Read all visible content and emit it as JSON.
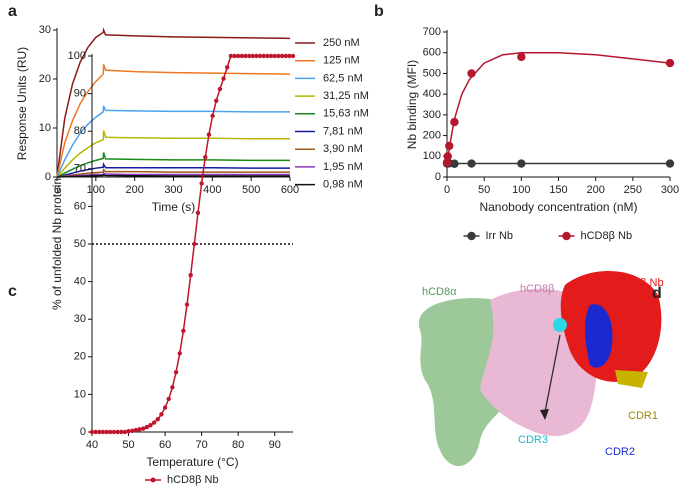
{
  "chart_data": [
    {
      "type": "line",
      "panel": "a",
      "xlabel": "Time (s)",
      "ylabel": "Response Units (RU)",
      "x": [
        0,
        20,
        40,
        60,
        80,
        100,
        119,
        120,
        125,
        200,
        300,
        400,
        500,
        600
      ],
      "xlim": [
        0,
        600
      ],
      "xticks": [
        0,
        100,
        200,
        300,
        400,
        500,
        600
      ],
      "ylim": [
        0,
        30
      ],
      "yticks": [
        0,
        10,
        20,
        30
      ],
      "legend": "right",
      "series": [
        {
          "name": "250 nM",
          "color": "#8b1a1a",
          "values": [
            0,
            12,
            19,
            23.5,
            26.5,
            28.5,
            29.5,
            30,
            29,
            28.8,
            28.6,
            28.5,
            28.4,
            28.3
          ]
        },
        {
          "name": "125 nM",
          "color": "#f07820",
          "values": [
            0,
            7,
            11.5,
            15,
            17.5,
            19.5,
            21,
            23,
            21.8,
            21.5,
            21.3,
            21.2,
            21.1,
            21
          ]
        },
        {
          "name": "62,5 nM",
          "color": "#4aa3f0",
          "values": [
            0,
            3.5,
            6.5,
            9,
            10.8,
            12.2,
            13.3,
            14.5,
            13.6,
            13.5,
            13.4,
            13.4,
            13.3,
            13.3
          ]
        },
        {
          "name": "31,25 nM",
          "color": "#b8b800",
          "values": [
            0,
            1.8,
            3.5,
            4.9,
            6,
            7,
            7.6,
            9.5,
            8.1,
            8,
            7.9,
            7.9,
            7.8,
            7.8
          ]
        },
        {
          "name": "15,63 nM",
          "color": "#1a8a1a",
          "values": [
            0,
            0.8,
            1.6,
            2.3,
            2.9,
            3.4,
            3.8,
            5,
            3.7,
            3.6,
            3.5,
            3.5,
            3.4,
            3.4
          ]
        },
        {
          "name": "7,81 nM",
          "color": "#1a1aa0",
          "values": [
            0,
            0.4,
            0.8,
            1.2,
            1.5,
            1.8,
            2,
            2.6,
            1.9,
            1.9,
            1.9,
            1.9,
            1.8,
            1.8
          ]
        },
        {
          "name": "3,90 nM",
          "color": "#a05a1a",
          "values": [
            0,
            0.2,
            0.4,
            0.6,
            0.8,
            0.9,
            1,
            1.5,
            1.1,
            1.1,
            1,
            1,
            1,
            1
          ]
        },
        {
          "name": "1,95 nM",
          "color": "#8a3ac0",
          "values": [
            0,
            0.1,
            0.2,
            0.3,
            0.4,
            0.5,
            0.5,
            0.8,
            0.6,
            0.5,
            0.5,
            0.5,
            0.5,
            0.5
          ]
        },
        {
          "name": "0,98 nM",
          "color": "#111111",
          "values": [
            0,
            0.05,
            0.1,
            0.15,
            0.2,
            0.25,
            0.3,
            0.4,
            0.3,
            0.25,
            0.2,
            0.2,
            0.2,
            0.2
          ]
        }
      ]
    },
    {
      "type": "scatter",
      "panel": "b",
      "xlabel": "Nanobody concentration (nM)",
      "ylabel": "Nb binding (MFI)",
      "xlim": [
        0,
        300
      ],
      "xticks": [
        0,
        50,
        100,
        150,
        200,
        250,
        300
      ],
      "ylim": [
        0,
        700
      ],
      "yticks": [
        0,
        100,
        200,
        300,
        400,
        500,
        600,
        700
      ],
      "legend": "bottom",
      "series": [
        {
          "name": "Irr Nb",
          "color": "#3a3a3a",
          "x": [
            0,
            1,
            3,
            10,
            33,
            100,
            300
          ],
          "values": [
            65,
            65,
            66,
            64,
            65,
            65,
            65
          ],
          "fit": {
            "x": [
              0,
              300
            ],
            "values": [
              65,
              65
            ]
          }
        },
        {
          "name": "hCD8β Nb",
          "color": "#b5172c",
          "x": [
            0,
            1,
            3,
            10,
            33,
            100,
            300
          ],
          "values": [
            70,
            100,
            150,
            265,
            500,
            580,
            550
          ],
          "fit": {
            "x": [
              0,
              5,
              10,
              20,
              30,
              50,
              75,
              100,
              150,
              200,
              250,
              300
            ],
            "values": [
              65,
              180,
              280,
              400,
              470,
              550,
              590,
              600,
              600,
              590,
              570,
              550
            ]
          }
        }
      ]
    },
    {
      "type": "line",
      "panel": "c",
      "xlabel": "Temperature (°C)",
      "ylabel": "% of unfolded Nb protein",
      "xlim": [
        40,
        95
      ],
      "xticks": [
        40,
        50,
        60,
        70,
        80,
        90
      ],
      "ylim": [
        0,
        100
      ],
      "yticks": [
        0,
        10,
        20,
        30,
        40,
        50,
        60,
        70,
        80,
        90,
        100
      ],
      "hline": 50,
      "legend": "bottom",
      "markers": true,
      "x": [
        40,
        41,
        42,
        43,
        44,
        45,
        46,
        47,
        48,
        49,
        50,
        51,
        52,
        53,
        54,
        55,
        56,
        57,
        58,
        59,
        60,
        61,
        62,
        63,
        64,
        65,
        66,
        67,
        68,
        69,
        70,
        71,
        72,
        73,
        74,
        75,
        76,
        77,
        78,
        79,
        80,
        81,
        82,
        83,
        84,
        85,
        86,
        87,
        88,
        89,
        90,
        91,
        92,
        93,
        94,
        95
      ],
      "series": [
        {
          "name": "hCD8β Nb",
          "color": "#c0152a",
          "values": [
            0,
            0,
            0,
            0,
            0,
            0,
            0,
            0,
            0,
            0,
            0.2,
            0.3,
            0.5,
            0.7,
            0.9,
            1.3,
            1.8,
            2.5,
            3.4,
            4.7,
            6.5,
            8.8,
            11.9,
            15.9,
            20.9,
            26.9,
            33.9,
            41.7,
            50,
            58.3,
            66.1,
            73.1,
            79.1,
            84.1,
            88.1,
            91.2,
            94,
            97,
            100,
            100,
            100,
            100,
            100,
            100,
            100,
            100,
            100,
            100,
            100,
            100,
            100,
            100,
            100,
            100,
            100,
            100
          ]
        }
      ]
    }
  ],
  "panel_d": {
    "panel": "d",
    "labels": [
      "hCD8α",
      "hCD8β",
      "hCD8β Nb",
      "CDR1",
      "CDR2",
      "CDR3"
    ]
  }
}
